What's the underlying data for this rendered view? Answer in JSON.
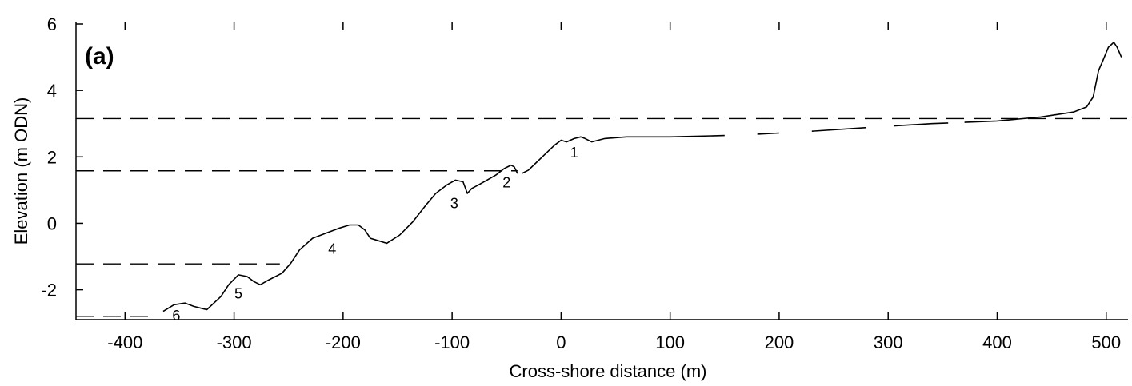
{
  "chart_data": {
    "type": "line",
    "panel_label": "(a)",
    "xlabel": "Cross-shore distance (m)",
    "ylabel": "Elevation (m ODN)",
    "xlim": [
      -445,
      520
    ],
    "ylim": [
      -2.9,
      6
    ],
    "xticks": [
      -400,
      -300,
      -200,
      -100,
      0,
      100,
      200,
      300,
      400,
      500
    ],
    "yticks": [
      -2,
      0,
      2,
      4,
      6
    ],
    "grid": false,
    "line_color": "#000000",
    "series": [
      {
        "x": [
          -365,
          -355,
          -345,
          -337,
          -325,
          -312,
          -305,
          -296,
          -288,
          -282,
          -276,
          -268,
          -256,
          -248,
          -240,
          -228,
          -216,
          -204,
          -194,
          -186,
          -180,
          -175,
          -170,
          -160,
          -148,
          -136,
          -124,
          -115,
          -105,
          -97,
          -90,
          -86,
          -82,
          -76,
          -68,
          -60,
          -52,
          -46,
          -43,
          -40,
          -36,
          -30,
          -22,
          -14,
          -6,
          0,
          5,
          12,
          18,
          22,
          28,
          40,
          60,
          100,
          160,
          220,
          280,
          340,
          400,
          440,
          470,
          482,
          488,
          493,
          497,
          502,
          507,
          510,
          514
        ],
        "y": [
          -2.65,
          -2.45,
          -2.4,
          -2.5,
          -2.6,
          -2.2,
          -1.85,
          -1.55,
          -1.6,
          -1.75,
          -1.85,
          -1.7,
          -1.5,
          -1.2,
          -0.8,
          -0.45,
          -0.3,
          -0.15,
          -0.05,
          -0.05,
          -0.2,
          -0.45,
          -0.5,
          -0.6,
          -0.35,
          0.05,
          0.55,
          0.9,
          1.15,
          1.3,
          1.25,
          0.9,
          1.05,
          1.15,
          1.3,
          1.45,
          1.65,
          1.75,
          1.7,
          1.5,
          1.5,
          1.6,
          1.85,
          2.1,
          2.35,
          2.5,
          2.45,
          2.55,
          2.6,
          2.55,
          2.45,
          2.55,
          2.6,
          2.6,
          2.65,
          2.75,
          2.88,
          3.0,
          3.08,
          3.2,
          3.35,
          3.5,
          3.8,
          4.6,
          4.9,
          5.3,
          5.45,
          5.3,
          5.0
        ]
      }
    ],
    "profile_gaps_x": [
      [
        -40,
        -36
      ],
      [
        150,
        180
      ],
      [
        200,
        230
      ],
      [
        280,
        305
      ],
      [
        355,
        370
      ]
    ],
    "reference_levels": [
      {
        "y": 3.15,
        "x_end": 520
      },
      {
        "y": 1.58,
        "x_end": -40
      },
      {
        "y": -1.22,
        "x_end": -258
      },
      {
        "y": -2.8,
        "x_end": -375
      }
    ],
    "bar_labels": [
      {
        "text": "1",
        "x": 12,
        "y": 2.15
      },
      {
        "text": "2",
        "x": -50,
        "y": 1.25
      },
      {
        "text": "3",
        "x": -98,
        "y": 0.62
      },
      {
        "text": "4",
        "x": -210,
        "y": -0.75
      },
      {
        "text": "5",
        "x": -296,
        "y": -2.1
      },
      {
        "text": "6",
        "x": -353,
        "y": -2.75
      }
    ]
  }
}
